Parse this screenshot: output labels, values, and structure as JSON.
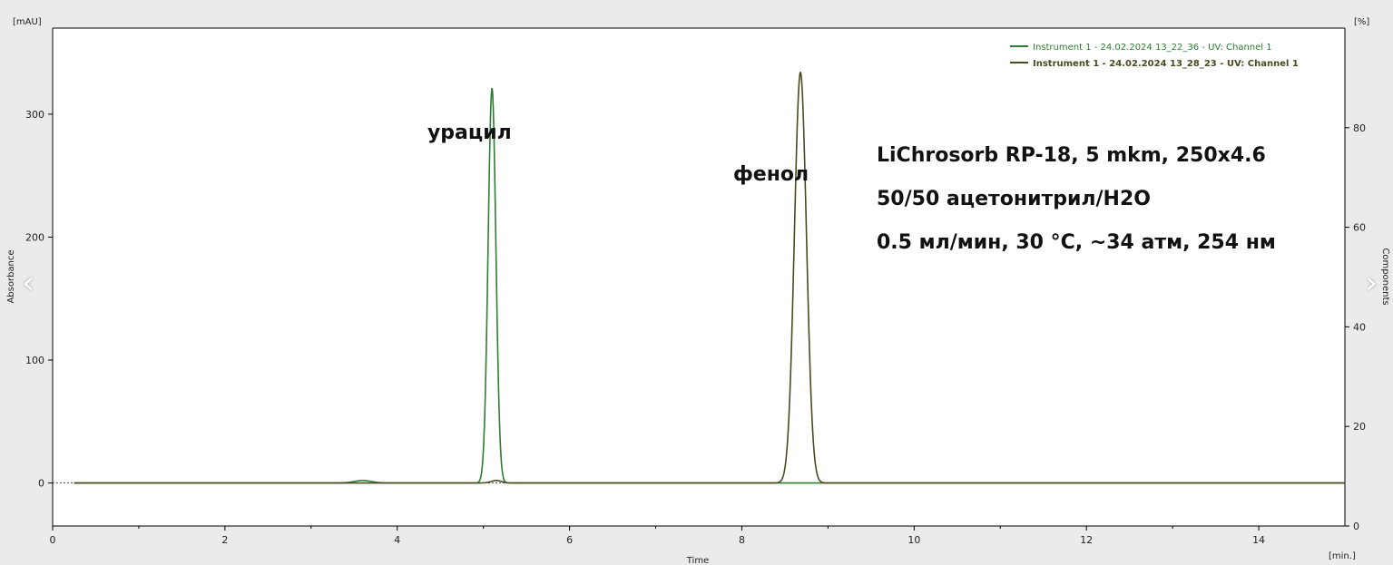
{
  "chart_data": {
    "type": "line",
    "y_unit": "[mAU]",
    "y2_unit": "[%]",
    "x_unit": "[min.]",
    "xlabel": "Time",
    "ylabel": "Absorbance",
    "y2label": "Components",
    "xlim": [
      0,
      15
    ],
    "ylim": [
      -35,
      370
    ],
    "y2lim": [
      0,
      100
    ],
    "x_ticks": [
      "0",
      "2",
      "4",
      "6",
      "8",
      "10",
      "12",
      "14"
    ],
    "y_ticks": [
      "0",
      "100",
      "200",
      "300"
    ],
    "y2_ticks": [
      "0",
      "20",
      "40",
      "60",
      "80"
    ],
    "series": [
      {
        "name": "Instrument 1 - 24.02.2024 13_22_36 - UV: Channel 1",
        "color": "#2e7d32",
        "peaks": [
          {
            "rt": 5.1,
            "height": 321,
            "sigma": 0.045
          },
          {
            "rt": 3.6,
            "height": 2,
            "sigma": 0.1
          }
        ]
      },
      {
        "name": "Instrument 1 - 24.02.2024 13_28_23 - UV: Channel 1",
        "color": "#4a4a22",
        "peaks": [
          {
            "rt": 8.68,
            "height": 334,
            "sigma": 0.07
          },
          {
            "rt": 5.15,
            "height": 2,
            "sigma": 0.06
          }
        ]
      }
    ],
    "annotations": [
      {
        "text": "урацил",
        "x": 4.35,
        "y": 280
      },
      {
        "text": "фенол",
        "x": 7.9,
        "y": 246
      }
    ],
    "info_lines": [
      "LiChrosorb RP-18, 5 mkm, 250x4.6",
      "50/50 ацетонитрил/H2O",
      "0.5 мл/мин, 30 °C, ~34 атм, 254 нм"
    ],
    "legend_position": "top-right",
    "grid": false
  },
  "nav": {
    "prev": "‹",
    "next": "›"
  }
}
